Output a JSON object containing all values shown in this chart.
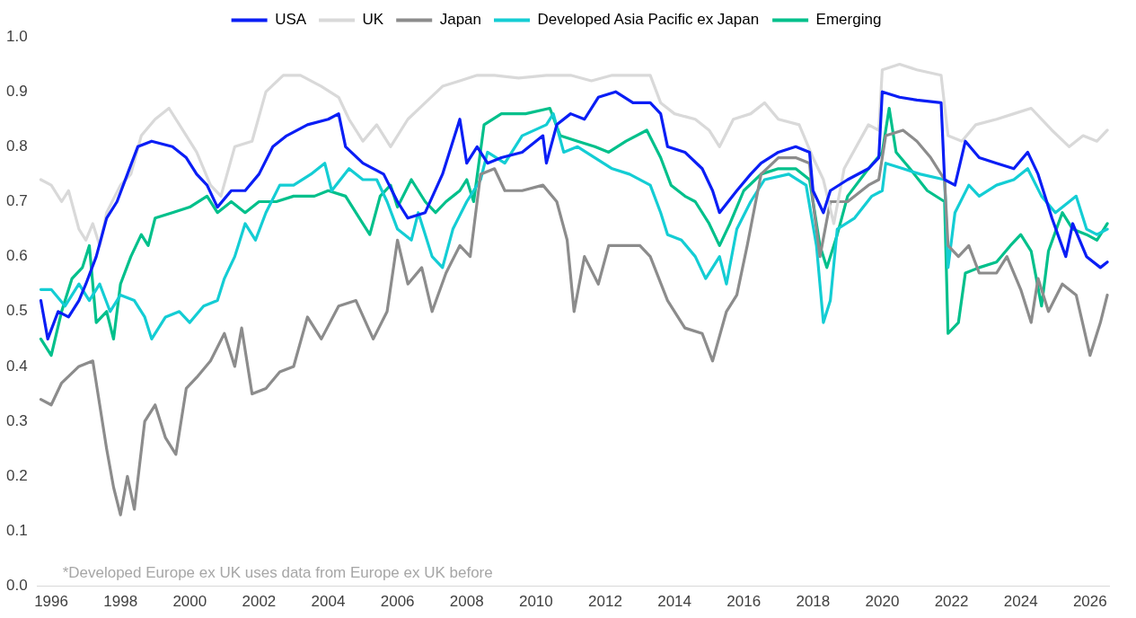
{
  "chart_data": {
    "type": "line",
    "xlim": [
      1995.6,
      2026.55
    ],
    "xticks": [
      1996,
      1998,
      2000,
      2002,
      2004,
      2006,
      2008,
      2010,
      2012,
      2014,
      2016,
      2018,
      2020,
      2022,
      2024,
      2026
    ],
    "ylim": [
      0,
      1
    ],
    "yticks": [
      {
        "value": 0,
        "label": "0.0"
      },
      0.1,
      0.2,
      0.3,
      0.4,
      0.5,
      0.6,
      0.7,
      0.8,
      0.9,
      {
        "value": 1,
        "label": "1.0"
      }
    ],
    "grid": false,
    "legend": "top",
    "marker": "none",
    "line_style": "solid",
    "annotations": [
      "*Developed Europe ex UK uses data from Europe ex UK before"
    ],
    "series": [
      {
        "name": "USA",
        "color": "#0a1ef5",
        "x": [
          1995.7,
          1995.9,
          1996.2,
          1996.5,
          1996.8,
          1997.0,
          1997.3,
          1997.6,
          1997.9,
          1998.2,
          1998.5,
          1998.9,
          1999.5,
          1999.9,
          2000.2,
          2000.5,
          2000.8,
          2001.2,
          2001.6,
          2002.0,
          2002.4,
          2002.8,
          2003.4,
          2004.0,
          2004.3,
          2004.5,
          2005.0,
          2005.6,
          2006.0,
          2006.3,
          2006.8,
          2007.3,
          2007.8,
          2008.0,
          2008.3,
          2008.6,
          2009.0,
          2009.6,
          2010.2,
          2010.3,
          2010.6,
          2011.0,
          2011.4,
          2011.8,
          2012.3,
          2012.8,
          2013.3,
          2013.6,
          2013.8,
          2014.3,
          2014.8,
          2015.1,
          2015.3,
          2015.8,
          2016.2,
          2016.5,
          2017.0,
          2017.5,
          2017.9,
          2018.0,
          2018.3,
          2018.5,
          2019.0,
          2019.6,
          2019.9,
          2020.0,
          2020.5,
          2021.0,
          2021.7,
          2021.8,
          2022.1,
          2022.4,
          2022.8,
          2023.3,
          2023.8,
          2024.2,
          2024.5,
          2024.9,
          2025.3,
          2025.5,
          2025.9,
          2026.3,
          2026.5
        ],
        "values": [
          0.52,
          0.45,
          0.5,
          0.49,
          0.52,
          0.55,
          0.6,
          0.67,
          0.7,
          0.75,
          0.8,
          0.81,
          0.8,
          0.78,
          0.75,
          0.73,
          0.69,
          0.72,
          0.72,
          0.75,
          0.8,
          0.82,
          0.84,
          0.85,
          0.86,
          0.8,
          0.77,
          0.75,
          0.7,
          0.67,
          0.68,
          0.75,
          0.85,
          0.77,
          0.8,
          0.77,
          0.78,
          0.79,
          0.82,
          0.77,
          0.84,
          0.86,
          0.85,
          0.89,
          0.9,
          0.88,
          0.88,
          0.86,
          0.8,
          0.79,
          0.76,
          0.72,
          0.68,
          0.72,
          0.75,
          0.77,
          0.79,
          0.8,
          0.79,
          0.72,
          0.68,
          0.72,
          0.74,
          0.76,
          0.78,
          0.9,
          0.89,
          0.885,
          0.88,
          0.74,
          0.73,
          0.81,
          0.78,
          0.77,
          0.76,
          0.79,
          0.75,
          0.67,
          0.6,
          0.66,
          0.6,
          0.58,
          0.59
        ]
      },
      {
        "name": "UK",
        "color": "#d9d9d9",
        "x": [
          1995.7,
          1996.0,
          1996.3,
          1996.5,
          1996.8,
          1997.0,
          1997.2,
          1997.4,
          1997.6,
          1998.0,
          1998.3,
          1998.6,
          1999.0,
          1999.4,
          1999.8,
          2000.2,
          2000.6,
          2000.9,
          2001.3,
          2001.8,
          2002.2,
          2002.7,
          2003.2,
          2003.8,
          2004.3,
          2004.6,
          2005.0,
          2005.4,
          2005.8,
          2006.3,
          2006.8,
          2007.3,
          2007.8,
          2008.3,
          2008.8,
          2009.5,
          2010.3,
          2011.0,
          2011.6,
          2012.2,
          2012.8,
          2013.3,
          2013.6,
          2014.0,
          2014.6,
          2015.0,
          2015.3,
          2015.7,
          2016.2,
          2016.6,
          2017.0,
          2017.6,
          2018.0,
          2018.3,
          2018.6,
          2018.9,
          2019.6,
          2019.9,
          2020.0,
          2020.5,
          2021.0,
          2021.7,
          2021.9,
          2022.3,
          2022.7,
          2023.3,
          2023.8,
          2024.3,
          2024.9,
          2025.4,
          2025.8,
          2026.2,
          2026.5
        ],
        "values": [
          0.74,
          0.73,
          0.7,
          0.72,
          0.65,
          0.63,
          0.66,
          0.62,
          0.68,
          0.73,
          0.75,
          0.82,
          0.85,
          0.87,
          0.83,
          0.79,
          0.73,
          0.71,
          0.8,
          0.81,
          0.9,
          0.93,
          0.93,
          0.91,
          0.89,
          0.85,
          0.81,
          0.84,
          0.8,
          0.85,
          0.88,
          0.91,
          0.92,
          0.93,
          0.93,
          0.925,
          0.93,
          0.93,
          0.92,
          0.93,
          0.93,
          0.93,
          0.88,
          0.86,
          0.85,
          0.83,
          0.8,
          0.85,
          0.86,
          0.88,
          0.85,
          0.84,
          0.78,
          0.74,
          0.66,
          0.76,
          0.84,
          0.83,
          0.94,
          0.95,
          0.94,
          0.93,
          0.82,
          0.81,
          0.84,
          0.85,
          0.86,
          0.87,
          0.83,
          0.8,
          0.82,
          0.81,
          0.83
        ]
      },
      {
        "name": "Japan",
        "color": "#8c8c8c",
        "x": [
          1995.7,
          1996.0,
          1996.3,
          1996.8,
          1997.2,
          1997.4,
          1997.6,
          1997.8,
          1998.0,
          1998.2,
          1998.4,
          1998.7,
          1999.0,
          1999.3,
          1999.6,
          1999.9,
          2000.2,
          2000.6,
          2001.0,
          2001.3,
          2001.5,
          2001.8,
          2002.2,
          2002.6,
          2003.0,
          2003.4,
          2003.8,
          2004.3,
          2004.8,
          2005.3,
          2005.7,
          2006.0,
          2006.3,
          2006.7,
          2007.0,
          2007.4,
          2007.8,
          2008.1,
          2008.4,
          2008.8,
          2009.1,
          2009.6,
          2010.2,
          2010.6,
          2010.9,
          2011.1,
          2011.4,
          2011.8,
          2012.1,
          2012.6,
          2013.0,
          2013.3,
          2013.8,
          2014.3,
          2014.8,
          2015.1,
          2015.5,
          2015.8,
          2016.1,
          2016.5,
          2017.0,
          2017.5,
          2017.9,
          2018.0,
          2018.2,
          2018.5,
          2019.0,
          2019.6,
          2019.9,
          2020.1,
          2020.6,
          2021.0,
          2021.4,
          2021.8,
          2021.9,
          2022.2,
          2022.5,
          2022.8,
          2023.3,
          2023.6,
          2024.0,
          2024.3,
          2024.5,
          2024.8,
          2025.2,
          2025.6,
          2026.0,
          2026.3,
          2026.5
        ],
        "values": [
          0.34,
          0.33,
          0.37,
          0.4,
          0.41,
          0.33,
          0.25,
          0.18,
          0.13,
          0.2,
          0.14,
          0.3,
          0.33,
          0.27,
          0.24,
          0.36,
          0.38,
          0.41,
          0.46,
          0.4,
          0.47,
          0.35,
          0.36,
          0.39,
          0.4,
          0.49,
          0.45,
          0.51,
          0.52,
          0.45,
          0.5,
          0.63,
          0.55,
          0.58,
          0.5,
          0.57,
          0.62,
          0.6,
          0.75,
          0.76,
          0.72,
          0.72,
          0.73,
          0.7,
          0.63,
          0.5,
          0.6,
          0.55,
          0.62,
          0.62,
          0.62,
          0.6,
          0.52,
          0.47,
          0.46,
          0.41,
          0.5,
          0.53,
          0.62,
          0.75,
          0.78,
          0.78,
          0.77,
          0.7,
          0.6,
          0.7,
          0.7,
          0.73,
          0.74,
          0.82,
          0.83,
          0.81,
          0.78,
          0.74,
          0.62,
          0.6,
          0.62,
          0.57,
          0.57,
          0.6,
          0.54,
          0.48,
          0.56,
          0.5,
          0.55,
          0.53,
          0.42,
          0.48,
          0.53
        ]
      },
      {
        "name": "Developed Asia Pacific ex Japan",
        "color": "#14cdd4",
        "x": [
          1995.7,
          1996.0,
          1996.4,
          1996.8,
          1997.1,
          1997.4,
          1997.7,
          1998.0,
          1998.4,
          1998.7,
          1998.9,
          1999.3,
          1999.7,
          2000.0,
          2000.4,
          2000.8,
          2001.0,
          2001.3,
          2001.6,
          2001.9,
          2002.2,
          2002.6,
          2003.0,
          2003.5,
          2003.9,
          2004.1,
          2004.6,
          2005.0,
          2005.4,
          2005.7,
          2006.0,
          2006.4,
          2006.6,
          2007.0,
          2007.3,
          2007.6,
          2008.0,
          2008.4,
          2008.6,
          2009.1,
          2009.6,
          2010.3,
          2010.5,
          2010.8,
          2011.2,
          2011.7,
          2012.2,
          2012.7,
          2013.3,
          2013.6,
          2013.8,
          2014.2,
          2014.6,
          2014.9,
          2015.3,
          2015.5,
          2015.8,
          2016.2,
          2016.6,
          2017.3,
          2017.8,
          2018.1,
          2018.3,
          2018.5,
          2018.7,
          2019.2,
          2019.7,
          2020.0,
          2020.1,
          2020.6,
          2021.1,
          2021.8,
          2021.9,
          2022.1,
          2022.5,
          2022.8,
          2023.3,
          2023.8,
          2024.2,
          2024.6,
          2025.0,
          2025.4,
          2025.6,
          2025.9,
          2026.2,
          2026.5
        ],
        "values": [
          0.54,
          0.54,
          0.51,
          0.55,
          0.52,
          0.55,
          0.5,
          0.53,
          0.52,
          0.49,
          0.45,
          0.49,
          0.5,
          0.48,
          0.51,
          0.52,
          0.56,
          0.6,
          0.66,
          0.63,
          0.68,
          0.73,
          0.73,
          0.75,
          0.77,
          0.72,
          0.76,
          0.74,
          0.74,
          0.7,
          0.65,
          0.63,
          0.68,
          0.6,
          0.58,
          0.65,
          0.7,
          0.74,
          0.79,
          0.77,
          0.82,
          0.84,
          0.86,
          0.79,
          0.8,
          0.78,
          0.76,
          0.75,
          0.73,
          0.68,
          0.64,
          0.63,
          0.6,
          0.56,
          0.6,
          0.55,
          0.65,
          0.7,
          0.74,
          0.75,
          0.73,
          0.62,
          0.48,
          0.52,
          0.65,
          0.67,
          0.71,
          0.72,
          0.77,
          0.76,
          0.75,
          0.74,
          0.58,
          0.68,
          0.73,
          0.71,
          0.73,
          0.74,
          0.76,
          0.71,
          0.68,
          0.7,
          0.71,
          0.65,
          0.64,
          0.65
        ]
      },
      {
        "name": "Emerging",
        "color": "#00c08b",
        "x": [
          1995.7,
          1996.0,
          1996.3,
          1996.6,
          1996.9,
          1997.1,
          1997.3,
          1997.6,
          1997.8,
          1998.0,
          1998.3,
          1998.6,
          1998.8,
          1999.0,
          1999.5,
          2000.0,
          2000.5,
          2000.8,
          2001.2,
          2001.6,
          2002.0,
          2002.5,
          2003.0,
          2003.6,
          2004.0,
          2004.5,
          2004.9,
          2005.2,
          2005.5,
          2005.8,
          2006.0,
          2006.4,
          2006.8,
          2007.1,
          2007.4,
          2007.8,
          2008.0,
          2008.2,
          2008.5,
          2009.0,
          2009.7,
          2010.4,
          2010.7,
          2011.2,
          2011.7,
          2012.1,
          2012.6,
          2013.2,
          2013.6,
          2013.9,
          2014.3,
          2014.6,
          2015.0,
          2015.3,
          2015.6,
          2016.0,
          2016.5,
          2017.0,
          2017.5,
          2017.9,
          2018.2,
          2018.4,
          2018.7,
          2019.0,
          2019.6,
          2020.0,
          2020.2,
          2020.4,
          2020.8,
          2021.3,
          2021.8,
          2021.9,
          2022.2,
          2022.4,
          2022.8,
          2023.3,
          2023.7,
          2024.0,
          2024.3,
          2024.6,
          2024.8,
          2025.2,
          2025.5,
          2025.9,
          2026.2,
          2026.5
        ],
        "values": [
          0.45,
          0.42,
          0.5,
          0.56,
          0.58,
          0.62,
          0.48,
          0.5,
          0.45,
          0.55,
          0.6,
          0.64,
          0.62,
          0.67,
          0.68,
          0.69,
          0.71,
          0.68,
          0.7,
          0.68,
          0.7,
          0.7,
          0.71,
          0.71,
          0.72,
          0.71,
          0.67,
          0.64,
          0.71,
          0.73,
          0.69,
          0.74,
          0.7,
          0.68,
          0.7,
          0.72,
          0.74,
          0.7,
          0.84,
          0.86,
          0.86,
          0.87,
          0.82,
          0.81,
          0.8,
          0.79,
          0.81,
          0.83,
          0.78,
          0.73,
          0.71,
          0.7,
          0.66,
          0.62,
          0.66,
          0.72,
          0.75,
          0.76,
          0.76,
          0.74,
          0.62,
          0.58,
          0.64,
          0.71,
          0.76,
          0.79,
          0.87,
          0.79,
          0.76,
          0.72,
          0.7,
          0.46,
          0.48,
          0.57,
          0.58,
          0.59,
          0.62,
          0.64,
          0.61,
          0.51,
          0.61,
          0.68,
          0.65,
          0.64,
          0.63,
          0.66
        ]
      }
    ]
  }
}
